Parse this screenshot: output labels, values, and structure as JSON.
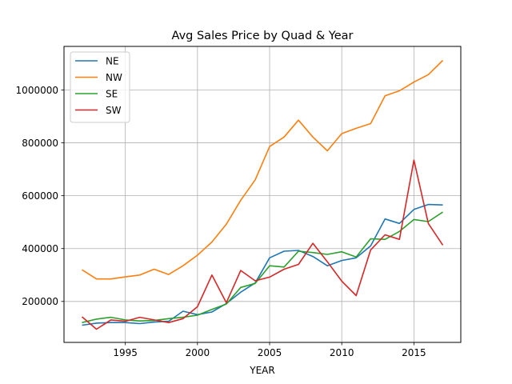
{
  "chart_data": {
    "type": "line",
    "title": "Avg Sales Price by Quad & Year",
    "xlabel": "YEAR",
    "ylabel": "",
    "xlim": [
      1990.75,
      2018.25
    ],
    "ylim": [
      45000,
      1165000
    ],
    "xticks": [
      1995,
      2000,
      2005,
      2010,
      2015
    ],
    "yticks": [
      200000,
      400000,
      600000,
      800000,
      1000000
    ],
    "grid": true,
    "legend_position": "upper-left",
    "x": [
      1992,
      1993,
      1994,
      1995,
      1996,
      1997,
      1998,
      1999,
      2000,
      2001,
      2002,
      2003,
      2004,
      2005,
      2006,
      2007,
      2008,
      2009,
      2010,
      2011,
      2012,
      2013,
      2014,
      2015,
      2016,
      2017
    ],
    "series": [
      {
        "name": "NE",
        "color": "#1f77b4",
        "values": [
          110000,
          118000,
          120000,
          120000,
          116000,
          122000,
          125000,
          163000,
          150000,
          160000,
          192000,
          235000,
          270000,
          365000,
          390000,
          393000,
          370000,
          335000,
          355000,
          365000,
          410000,
          512000,
          495000,
          548000,
          567000,
          565000
        ]
      },
      {
        "name": "NW",
        "color": "#ff7f0e",
        "values": [
          320000,
          285000,
          285000,
          293000,
          300000,
          322000,
          302000,
          335000,
          375000,
          425000,
          492000,
          583000,
          660000,
          786000,
          822000,
          886000,
          822000,
          770000,
          835000,
          855000,
          873000,
          978000,
          997000,
          1030000,
          1058000,
          1112000
        ]
      },
      {
        "name": "SE",
        "color": "#2ca02c",
        "values": [
          120000,
          133000,
          140000,
          130000,
          126000,
          128000,
          135000,
          140000,
          148000,
          170000,
          190000,
          253000,
          268000,
          335000,
          330000,
          390000,
          385000,
          378000,
          388000,
          368000,
          437000,
          435000,
          465000,
          510000,
          502000,
          538000
        ]
      },
      {
        "name": "SW",
        "color": "#d62728",
        "values": [
          142000,
          95000,
          130000,
          125000,
          140000,
          130000,
          120000,
          135000,
          180000,
          300000,
          195000,
          317000,
          278000,
          292000,
          322000,
          340000,
          420000,
          350000,
          277000,
          222000,
          395000,
          452000,
          435000,
          735000,
          495000,
          413000
        ]
      }
    ]
  }
}
